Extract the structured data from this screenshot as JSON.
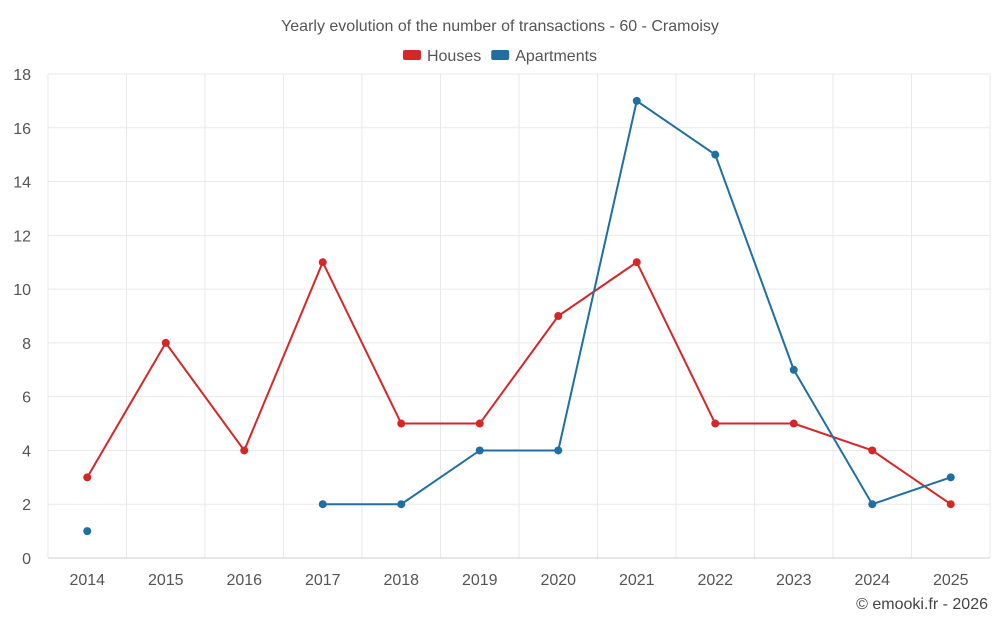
{
  "chart_data": {
    "type": "line",
    "title": "Yearly evolution of the number of transactions - 60 - Cramoisy",
    "categories": [
      "2014",
      "2015",
      "2016",
      "2017",
      "2018",
      "2019",
      "2020",
      "2021",
      "2022",
      "2023",
      "2024",
      "2025"
    ],
    "series": [
      {
        "name": "Houses",
        "color": "#d62728",
        "values": [
          3,
          8,
          4,
          11,
          5,
          5,
          9,
          11,
          5,
          5,
          4,
          2
        ]
      },
      {
        "name": "Apartments",
        "color": "#1f6fa3",
        "values": [
          1,
          null,
          null,
          2,
          2,
          4,
          4,
          17,
          15,
          7,
          2,
          3
        ]
      }
    ],
    "ylim": [
      0,
      18
    ],
    "yticks": [
      0,
      2,
      4,
      6,
      8,
      10,
      12,
      14,
      16,
      18
    ],
    "xlabel": "",
    "ylabel": "",
    "legend": "top-center",
    "grid": true
  },
  "credit": "© emooki.fr - 2026"
}
